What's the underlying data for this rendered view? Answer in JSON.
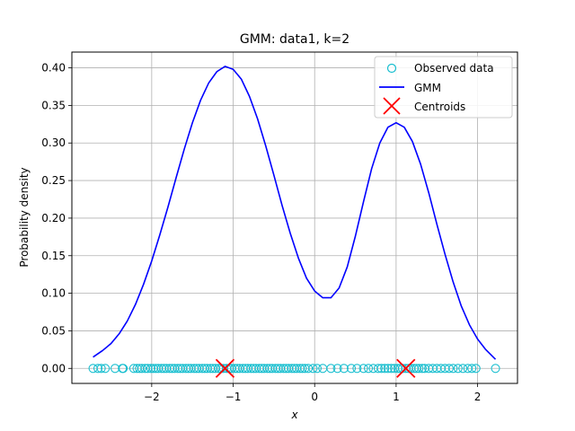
{
  "chart_data": {
    "type": "line",
    "title": "GMM: data1, k=2",
    "xlabel": "x",
    "ylabel": "Probability density",
    "xlim": [
      -2.98,
      2.49
    ],
    "ylim": [
      -0.02,
      0.421
    ],
    "xticks": [
      -2,
      -1,
      0,
      1,
      2
    ],
    "yticks": [
      0.0,
      0.05,
      0.1,
      0.15,
      0.2,
      0.25,
      0.3,
      0.35,
      0.4
    ],
    "ytick_labels": [
      "0.00",
      "0.05",
      "0.10",
      "0.15",
      "0.20",
      "0.25",
      "0.30",
      "0.35",
      "0.40"
    ],
    "grid": true,
    "legend_position": "top-right",
    "colors": {
      "observed": "#17becf",
      "gmm": "#0000ff",
      "centroids": "#ff0000"
    },
    "series": [
      {
        "name": "Observed data",
        "kind": "scatter",
        "marker": "open-circle",
        "x": [
          -2.72,
          -2.66,
          -2.62,
          -2.57,
          -2.45,
          -2.36,
          -2.35,
          -2.22,
          -2.18,
          -2.15,
          -2.12,
          -2.08,
          -2.05,
          -2.01,
          -1.98,
          -1.95,
          -1.92,
          -1.88,
          -1.85,
          -1.82,
          -1.78,
          -1.75,
          -1.72,
          -1.68,
          -1.65,
          -1.62,
          -1.58,
          -1.55,
          -1.52,
          -1.48,
          -1.45,
          -1.42,
          -1.38,
          -1.35,
          -1.32,
          -1.28,
          -1.25,
          -1.22,
          -1.18,
          -1.15,
          -1.12,
          -1.08,
          -1.05,
          -1.02,
          -0.98,
          -0.95,
          -0.92,
          -0.88,
          -0.85,
          -0.82,
          -0.78,
          -0.75,
          -0.72,
          -0.68,
          -0.65,
          -0.62,
          -0.58,
          -0.55,
          -0.52,
          -0.48,
          -0.45,
          -0.42,
          -0.38,
          -0.35,
          -0.32,
          -0.28,
          -0.25,
          -0.22,
          -0.18,
          -0.15,
          -0.12,
          -0.08,
          -0.02,
          0.03,
          0.1,
          0.2,
          0.28,
          0.36,
          0.45,
          0.52,
          0.6,
          0.66,
          0.72,
          0.78,
          0.82,
          0.86,
          0.9,
          0.94,
          0.98,
          1.02,
          1.05,
          1.08,
          1.12,
          1.15,
          1.18,
          1.22,
          1.25,
          1.28,
          1.32,
          1.35,
          1.4,
          1.45,
          1.5,
          1.55,
          1.6,
          1.65,
          1.7,
          1.76,
          1.82,
          1.88,
          1.93,
          1.98,
          2.22
        ],
        "y_all": 0.0
      },
      {
        "name": "GMM",
        "kind": "line",
        "x": [
          -2.72,
          -2.6,
          -2.5,
          -2.4,
          -2.3,
          -2.2,
          -2.1,
          -2.0,
          -1.9,
          -1.8,
          -1.7,
          -1.6,
          -1.5,
          -1.4,
          -1.3,
          -1.2,
          -1.1,
          -1.0,
          -0.9,
          -0.8,
          -0.7,
          -0.6,
          -0.5,
          -0.4,
          -0.3,
          -0.2,
          -0.1,
          0.0,
          0.1,
          0.2,
          0.3,
          0.4,
          0.5,
          0.6,
          0.7,
          0.8,
          0.9,
          1.0,
          1.1,
          1.2,
          1.3,
          1.4,
          1.5,
          1.6,
          1.7,
          1.8,
          1.9,
          2.0,
          2.1,
          2.22
        ],
        "y": [
          0.015,
          0.024,
          0.033,
          0.046,
          0.063,
          0.085,
          0.112,
          0.143,
          0.178,
          0.215,
          0.254,
          0.292,
          0.327,
          0.357,
          0.38,
          0.395,
          0.402,
          0.398,
          0.385,
          0.362,
          0.332,
          0.296,
          0.257,
          0.217,
          0.18,
          0.147,
          0.12,
          0.103,
          0.094,
          0.094,
          0.107,
          0.135,
          0.176,
          0.222,
          0.266,
          0.3,
          0.321,
          0.327,
          0.321,
          0.302,
          0.272,
          0.234,
          0.192,
          0.152,
          0.115,
          0.083,
          0.058,
          0.039,
          0.025,
          0.012
        ]
      },
      {
        "name": "Centroids",
        "kind": "scatter",
        "marker": "x",
        "x": [
          -1.1,
          1.12
        ],
        "y": [
          0.0,
          0.0
        ]
      }
    ]
  }
}
